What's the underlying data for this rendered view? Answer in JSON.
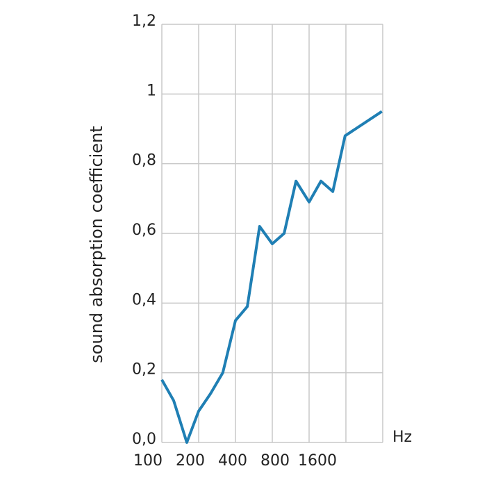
{
  "chart_data": {
    "type": "line",
    "y_label": "sound absorption coefficient",
    "x_unit": "Hz",
    "x": [
      100,
      125,
      160,
      200,
      250,
      315,
      400,
      500,
      630,
      800,
      1000,
      1250,
      1600,
      2000,
      2500,
      3150,
      6300
    ],
    "series": [
      {
        "name": "sound absorption coefficient",
        "color": "#1f7fb4",
        "values": [
          0.18,
          0.12,
          0.0,
          0.09,
          0.14,
          0.2,
          0.35,
          0.39,
          0.62,
          0.57,
          0.6,
          0.75,
          0.69,
          0.75,
          0.72,
          0.88,
          0.95
        ]
      }
    ],
    "xscale": "log",
    "xlim": [
      100,
      6400
    ],
    "xticks": [
      100,
      200,
      400,
      800,
      1600
    ],
    "xgrid_lines": [
      100,
      200,
      400,
      800,
      1600,
      3200,
      6400
    ],
    "ylim": [
      0,
      1.2
    ],
    "yticks": [
      {
        "value": 0,
        "label": "0,0"
      },
      {
        "value": 0.2,
        "label": "0,2"
      },
      {
        "value": 0.4,
        "label": "0,4"
      },
      {
        "value": 0.6,
        "label": "0,6"
      },
      {
        "value": 0.8,
        "label": "0,8"
      },
      1,
      {
        "value": 1.2,
        "label": "1,2"
      }
    ],
    "grid": true
  }
}
